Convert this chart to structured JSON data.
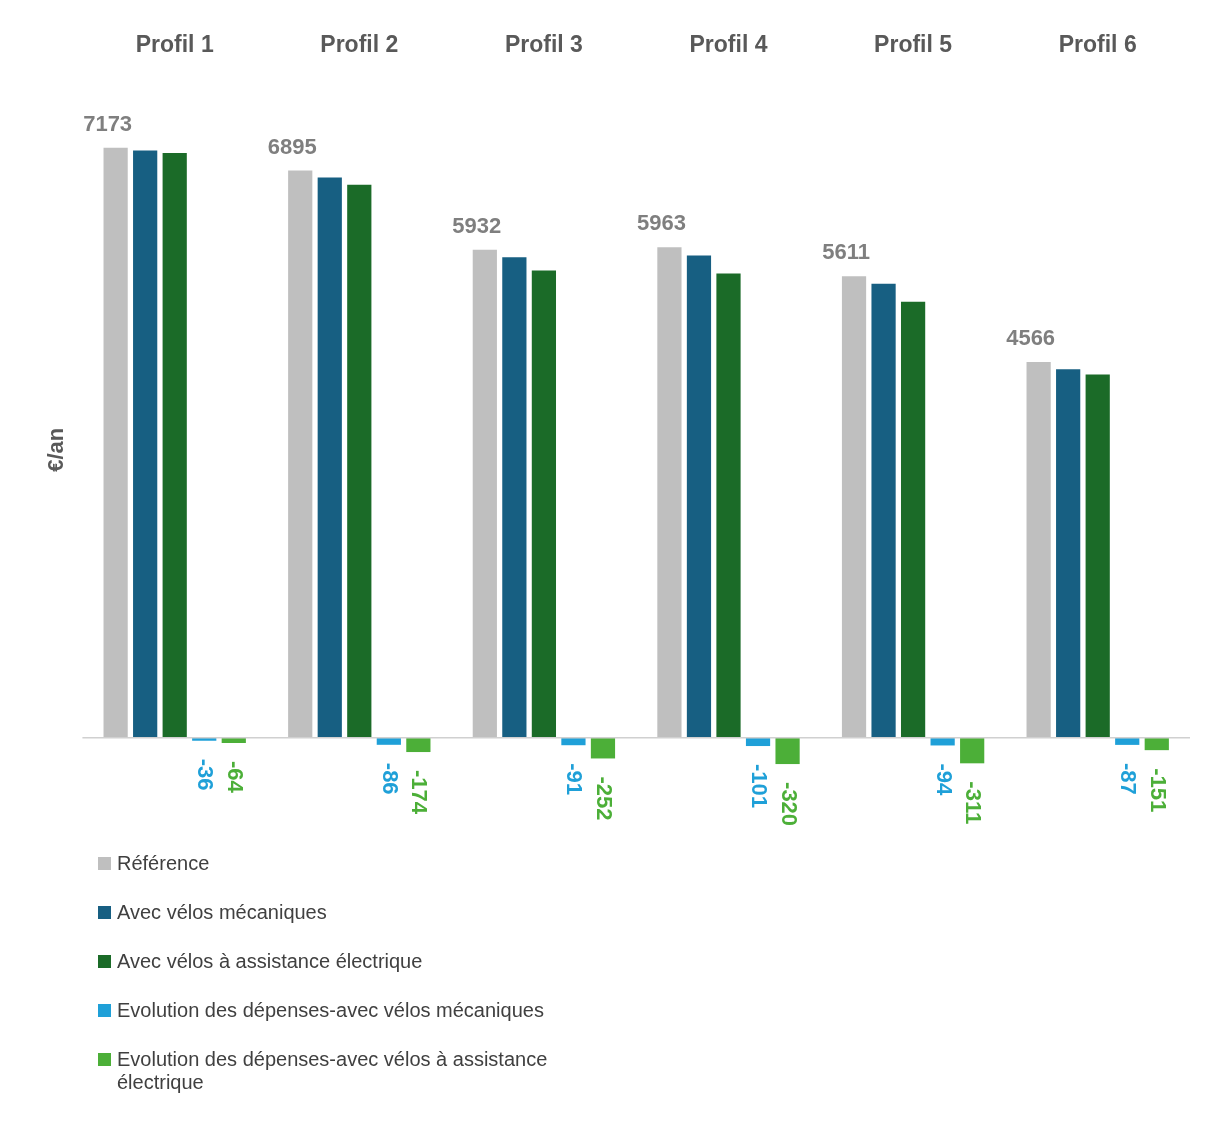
{
  "chart_data": {
    "type": "bar",
    "categories": [
      "Profil 1",
      "Profil 2",
      "Profil 3",
      "Profil 4",
      "Profil 5",
      "Profil 6"
    ],
    "ylabel": "€/an",
    "tick_labels": "x",
    "legend": "bottom left",
    "series": [
      {
        "name": "Référence",
        "color": "#bfbfbf",
        "values": [
          7173,
          6895,
          5932,
          5963,
          5611,
          4566
        ],
        "value_labels": [
          "7173",
          "6895",
          "5932",
          "5963",
          "5611",
          "4566"
        ]
      },
      {
        "name": "Avec vélos mécaniques",
        "color": "#175f82",
        "values": [
          7137,
          6809,
          5841,
          5862,
          5517,
          4479
        ]
      },
      {
        "name": "Avec vélos à assistance électrique",
        "color": "#1b6b28",
        "values": [
          7109,
          6721,
          5680,
          5643,
          5300,
          4415
        ]
      },
      {
        "name": "Evolution des dépenses-avec vélos mécaniques",
        "color": "#1fa0d8",
        "values": [
          -36,
          -86,
          -91,
          -101,
          -94,
          -87
        ],
        "value_labels": [
          "-36",
          "-86",
          "-91",
          "-101",
          "-94",
          "-87"
        ]
      },
      {
        "name": "Evolution des dépenses-avec vélos à assistance électrique",
        "color": "#4caf38",
        "values": [
          -64,
          -174,
          -252,
          -320,
          -311,
          -151
        ],
        "value_labels": [
          "-64",
          "-174",
          "-252",
          "-320",
          "-311",
          "-151"
        ]
      }
    ]
  }
}
